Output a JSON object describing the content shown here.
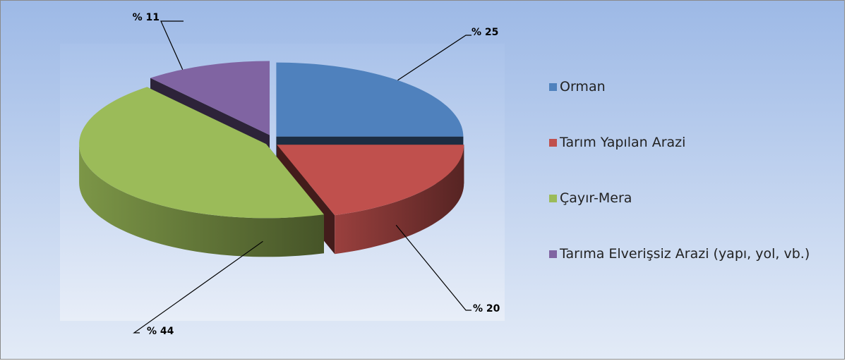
{
  "chart_data": {
    "type": "pie3d",
    "categories": [
      "Orman",
      "Tarım Yapılan Arazi",
      "Çayır-Mera",
      "Tarıma Elverişsiz Arazi (yapı, yol, vb.)"
    ],
    "values": [
      25,
      20,
      44,
      11
    ],
    "value_labels": [
      "% 25",
      "% 20",
      "% 44",
      "% 11"
    ],
    "colors": [
      "#4f81bd",
      "#c0504d",
      "#9bbb59",
      "#8064a2"
    ],
    "legend": "right"
  }
}
